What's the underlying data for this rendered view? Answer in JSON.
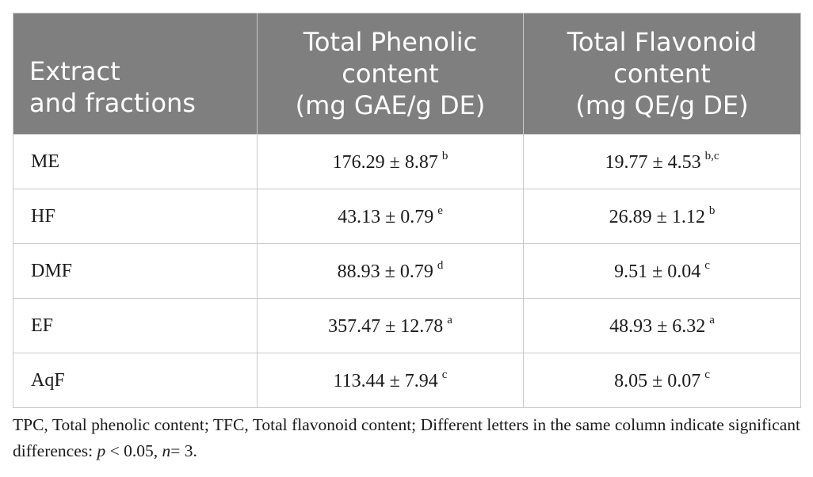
{
  "table": {
    "headers": [
      [
        "Extract",
        "and fractions"
      ],
      [
        "Total Phenolic",
        "content",
        "(mg GAE/g DE)"
      ],
      [
        "Total Flavonoid",
        "content",
        "(mg QE/g DE)"
      ]
    ],
    "rows": [
      {
        "label": "ME",
        "tpc": "176.29 ± 8.87",
        "tpc_sup": "b",
        "tfc": "19.77 ± 4.53",
        "tfc_sup": "b,c"
      },
      {
        "label": "HF",
        "tpc": "43.13 ± 0.79",
        "tpc_sup": "e",
        "tfc": "26.89 ± 1.12",
        "tfc_sup": "b"
      },
      {
        "label": "DMF",
        "tpc": "88.93 ± 0.79",
        "tpc_sup": "d",
        "tfc": "9.51 ± 0.04",
        "tfc_sup": "c"
      },
      {
        "label": "EF",
        "tpc": "357.47 ± 12.78",
        "tpc_sup": "a",
        "tfc": "48.93 ± 6.32",
        "tfc_sup": "a"
      },
      {
        "label": "AqF",
        "tpc": "113.44 ± 7.94",
        "tpc_sup": "c",
        "tfc": "8.05 ± 0.07",
        "tfc_sup": "c"
      }
    ]
  },
  "footnote": {
    "text1": "TPC, Total phenolic content; TFC, Total flavonoid content; Different letters in the same column indicate significant differences: ",
    "p": "p",
    "text2": " < 0.05, ",
    "n": "n",
    "text3": "= 3."
  },
  "colors": {
    "header_bg": "#7f7f7f",
    "header_text": "#ffffff",
    "border": "#c9c9c9"
  }
}
